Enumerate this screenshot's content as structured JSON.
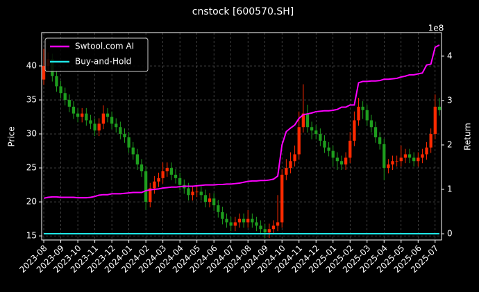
{
  "chart_data": {
    "type": "candlestick",
    "title": "cnstock [600570.SH]",
    "ylabel": "Price",
    "y2label": "Return",
    "y2_offset_label": "1e8",
    "up_color": "#ff2a00",
    "down_color": "#1e9e1e",
    "grid": true,
    "legend": "upper left",
    "ylim": [
      14.4,
      44.9
    ],
    "yticks": [
      15,
      20,
      25,
      30,
      35,
      40
    ],
    "y2lim": [
      -0.14,
      4.53
    ],
    "y2ticks": [
      0,
      1,
      2,
      3,
      4
    ],
    "categories": [
      "2023-08",
      null,
      null,
      null,
      "2023-09",
      null,
      null,
      null,
      "2023-10",
      null,
      null,
      null,
      "2023-11",
      null,
      null,
      null,
      "2023-12",
      null,
      null,
      null,
      "2024-01",
      null,
      null,
      null,
      "2024-02",
      null,
      null,
      null,
      "2024-03",
      null,
      null,
      null,
      "2024-04",
      null,
      null,
      null,
      "2024-05",
      null,
      null,
      null,
      "2024-06",
      null,
      null,
      null,
      "2024-07",
      null,
      null,
      null,
      "2024-08",
      null,
      null,
      null,
      "2024-09",
      null,
      null,
      null,
      "2024-10",
      null,
      null,
      null,
      "2024-11",
      null,
      null,
      null,
      "2024-12",
      null,
      null,
      null,
      "2025-01",
      null,
      null,
      null,
      "2025-02",
      null,
      null,
      null,
      "2025-03",
      null,
      null,
      null,
      "2025-04",
      null,
      null,
      null,
      "2025-05",
      null,
      null,
      null,
      "2025-06",
      null,
      null,
      null,
      "2025-07",
      null
    ],
    "open": [
      38,
      40,
      41,
      38.5,
      37,
      36,
      35,
      34,
      33,
      32.5,
      33,
      32,
      31.5,
      30.5,
      31.5,
      33,
      32.5,
      31.5,
      31,
      30,
      29.5,
      28,
      27,
      25.5,
      24.5,
      20,
      22,
      23,
      23.5,
      24.5,
      25,
      24,
      23.5,
      22.5,
      22,
      21,
      21.5,
      21.5,
      21,
      20,
      20.5,
      19.5,
      18.5,
      17.5,
      17,
      16.5,
      17,
      17.5,
      17,
      17.5,
      17,
      16.5,
      16,
      15.5,
      16,
      16.5,
      17,
      24,
      25,
      26,
      27,
      31,
      33,
      31,
      30.5,
      30,
      29,
      28,
      27.5,
      26.5,
      26,
      25.5,
      26.5,
      29,
      32,
      34,
      33.5,
      32,
      31,
      29.5,
      28.5,
      25,
      25.5,
      26,
      26,
      26.5,
      27,
      26.5,
      26,
      26.5,
      27,
      28,
      30,
      34
    ],
    "high": [
      42.5,
      42,
      41.8,
      39.3,
      37.8,
      36.8,
      35.8,
      34.8,
      33.8,
      33.8,
      33.8,
      32.8,
      32.3,
      32.3,
      34.2,
      33.8,
      33.3,
      32.3,
      31.8,
      30.8,
      30.3,
      28.8,
      27.8,
      26.3,
      25.3,
      22.8,
      23.8,
      24.3,
      25.8,
      25.8,
      25.8,
      24.8,
      24.3,
      23.3,
      22.8,
      22.3,
      22.3,
      22.3,
      21.8,
      21.3,
      21.3,
      20.3,
      19.3,
      18.3,
      17.8,
      17.8,
      18.3,
      18.3,
      18.8,
      18.3,
      17.8,
      17.3,
      16.8,
      16.8,
      17.3,
      21,
      24.8,
      26.3,
      27.3,
      28.3,
      33.3,
      37.3,
      34.3,
      31.8,
      31.3,
      30.8,
      29.8,
      28.8,
      28.3,
      27.3,
      26.8,
      27.3,
      30.3,
      33.3,
      35.3,
      34.8,
      34.3,
      32.8,
      31.8,
      30.3,
      29.3,
      26.3,
      26.8,
      26.8,
      28.3,
      27.8,
      27.8,
      27.3,
      27.3,
      27.8,
      28.8,
      30.8,
      35.8,
      35.3
    ],
    "low": [
      37.2,
      39.2,
      37.7,
      36.2,
      35.2,
      34.2,
      33.2,
      32.2,
      31.7,
      31.7,
      31.2,
      30.7,
      29.7,
      29.7,
      30.7,
      31.7,
      30.7,
      30.2,
      29.2,
      28.7,
      27.2,
      26.2,
      24.7,
      23.7,
      18.8,
      19.2,
      21.2,
      22.2,
      22.7,
      23.7,
      23.2,
      22.7,
      21.7,
      21.2,
      20.2,
      20.2,
      20.7,
      20.2,
      19.2,
      19.2,
      18.7,
      17.7,
      16.7,
      16.2,
      15.7,
      15.7,
      16.2,
      16.2,
      16.2,
      16.2,
      15.7,
      15.2,
      14.7,
      14.7,
      15.2,
      15.7,
      16.2,
      23.2,
      24.2,
      25.2,
      26.2,
      30.2,
      30.2,
      29.2,
      29.2,
      28.2,
      27.2,
      26.7,
      25.2,
      24.7,
      24.7,
      24.7,
      25.7,
      28.2,
      31.2,
      32.2,
      31.2,
      30.2,
      28.7,
      27.7,
      23.2,
      24.2,
      24.7,
      25.2,
      25.2,
      25.7,
      25.7,
      25.2,
      25.2,
      25.7,
      26.2,
      27.2,
      29.2,
      32.7
    ],
    "close": [
      40,
      41,
      38.5,
      37,
      36,
      35,
      34,
      33,
      32.5,
      33,
      32,
      31.5,
      30.5,
      31.5,
      33,
      32.5,
      31.5,
      31,
      30,
      29.5,
      28,
      27,
      25.5,
      24.5,
      20,
      22,
      23,
      23.5,
      24.5,
      25,
      24,
      23.5,
      22.5,
      22,
      21,
      21.5,
      21.5,
      21,
      20,
      20.5,
      19.5,
      18.5,
      17.5,
      17,
      16.5,
      17,
      17.5,
      17,
      17.5,
      17,
      16.5,
      16,
      15.5,
      16,
      16.5,
      17,
      24,
      25,
      26,
      27,
      31,
      33,
      31,
      30.5,
      30,
      29,
      28,
      27.5,
      26.5,
      26,
      25.5,
      26.5,
      29,
      32,
      34,
      33.5,
      32,
      31,
      29.5,
      28.5,
      25,
      25.5,
      26,
      26,
      26.5,
      27,
      26.5,
      26,
      26.5,
      27,
      28,
      30,
      34,
      33.5
    ],
    "series": [
      {
        "name": "Swtool.com AI",
        "color": "#ff00ff",
        "axis": "y2",
        "values": [
          0.8,
          0.82,
          0.83,
          0.83,
          0.82,
          0.82,
          0.82,
          0.82,
          0.81,
          0.81,
          0.81,
          0.82,
          0.84,
          0.87,
          0.88,
          0.88,
          0.9,
          0.9,
          0.9,
          0.91,
          0.92,
          0.93,
          0.93,
          0.93,
          0.97,
          0.99,
          1.0,
          1.01,
          1.03,
          1.04,
          1.05,
          1.05,
          1.06,
          1.07,
          1.07,
          1.07,
          1.08,
          1.09,
          1.1,
          1.1,
          1.1,
          1.11,
          1.11,
          1.12,
          1.12,
          1.13,
          1.14,
          1.16,
          1.18,
          1.19,
          1.19,
          1.2,
          1.2,
          1.21,
          1.23,
          1.3,
          2.0,
          2.3,
          2.38,
          2.45,
          2.6,
          2.68,
          2.7,
          2.72,
          2.75,
          2.76,
          2.77,
          2.77,
          2.78,
          2.8,
          2.85,
          2.85,
          2.9,
          2.9,
          3.4,
          3.43,
          3.43,
          3.44,
          3.44,
          3.45,
          3.48,
          3.48,
          3.49,
          3.5,
          3.53,
          3.55,
          3.58,
          3.58,
          3.6,
          3.62,
          3.8,
          3.82,
          4.2,
          4.25
        ]
      },
      {
        "name": "Buy-and-Hold",
        "color": "#1ee8e8",
        "axis": "y2",
        "values": [
          0,
          0,
          0,
          0,
          0,
          0,
          0,
          0,
          0,
          0,
          0,
          0,
          0,
          0,
          0,
          0,
          0,
          0,
          0,
          0,
          0,
          0,
          0,
          0,
          0,
          0,
          0,
          0,
          0,
          0,
          0,
          0,
          0,
          0,
          0,
          0,
          0,
          0,
          0,
          0,
          0,
          0,
          0,
          0,
          0,
          0,
          0,
          0,
          0,
          0,
          0,
          0,
          0,
          0,
          0,
          0,
          0,
          0,
          0,
          0,
          0,
          0,
          0,
          0,
          0,
          0,
          0,
          0,
          0,
          0,
          0,
          0,
          0,
          0,
          0,
          0,
          0,
          0,
          0,
          0,
          0,
          0,
          0,
          0,
          0,
          0,
          0,
          0,
          0,
          0,
          0,
          0,
          0,
          0
        ]
      }
    ]
  }
}
